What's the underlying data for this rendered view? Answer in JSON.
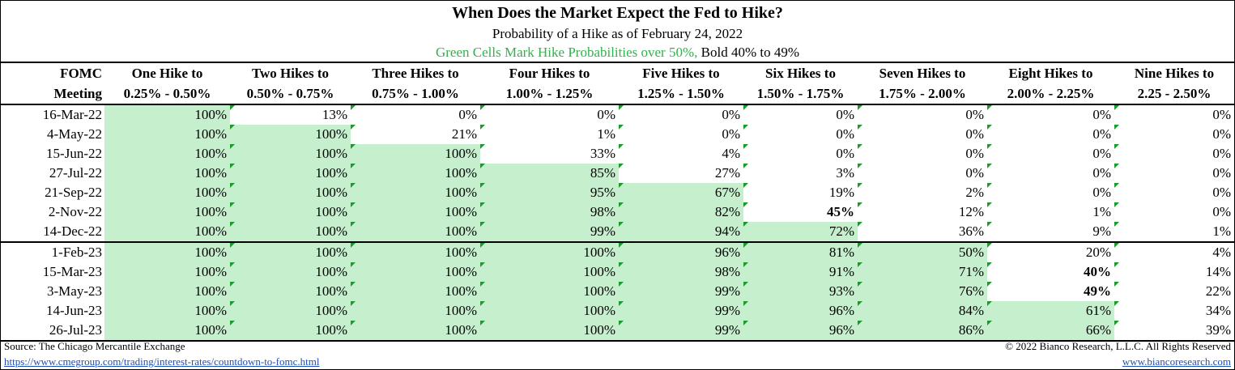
{
  "header": {
    "title": "When Does the Market Expect the Fed to Hike?",
    "subtitle": "Probability of a Hike as of February 24, 2022",
    "note_green": "Green Cells Mark Hike Probabilities over 50%,",
    "note_bold": " Bold 40% to 49%"
  },
  "table": {
    "corner": [
      "FOMC",
      "Meeting"
    ],
    "columns": [
      [
        "One Hike to",
        "0.25% - 0.50%"
      ],
      [
        "Two Hikes to",
        "0.50% - 0.75%"
      ],
      [
        "Three Hikes to",
        "0.75% - 1.00%"
      ],
      [
        "Four Hikes to",
        "1.00% - 1.25%"
      ],
      [
        "Five Hikes to",
        "1.25% - 1.50%"
      ],
      [
        "Six Hikes to",
        "1.50% - 1.75%"
      ],
      [
        "Seven Hikes to",
        "1.75% - 2.00%"
      ],
      [
        "Eight Hikes to",
        "2.00% - 2.25%"
      ],
      [
        "Nine Hikes to",
        "2.25 - 2.50%"
      ]
    ],
    "rows": [
      [
        "16-Mar-22",
        "100%",
        "13%",
        "0%",
        "0%",
        "0%",
        "0%",
        "0%",
        "0%",
        "0%"
      ],
      [
        "4-May-22",
        "100%",
        "100%",
        "21%",
        "1%",
        "0%",
        "0%",
        "0%",
        "0%",
        "0%"
      ],
      [
        "15-Jun-22",
        "100%",
        "100%",
        "100%",
        "33%",
        "4%",
        "0%",
        "0%",
        "0%",
        "0%"
      ],
      [
        "27-Jul-22",
        "100%",
        "100%",
        "100%",
        "85%",
        "27%",
        "3%",
        "0%",
        "0%",
        "0%"
      ],
      [
        "21-Sep-22",
        "100%",
        "100%",
        "100%",
        "95%",
        "67%",
        "19%",
        "2%",
        "0%",
        "0%"
      ],
      [
        "2-Nov-22",
        "100%",
        "100%",
        "100%",
        "98%",
        "82%",
        "45%",
        "12%",
        "1%",
        "0%"
      ],
      [
        "14-Dec-22",
        "100%",
        "100%",
        "100%",
        "99%",
        "94%",
        "72%",
        "36%",
        "9%",
        "1%"
      ],
      [
        "1-Feb-23",
        "100%",
        "100%",
        "100%",
        "100%",
        "96%",
        "81%",
        "50%",
        "20%",
        "4%"
      ],
      [
        "15-Mar-23",
        "100%",
        "100%",
        "100%",
        "100%",
        "98%",
        "91%",
        "71%",
        "40%",
        "14%"
      ],
      [
        "3-May-23",
        "100%",
        "100%",
        "100%",
        "100%",
        "99%",
        "93%",
        "76%",
        "49%",
        "22%"
      ],
      [
        "14-Jun-23",
        "100%",
        "100%",
        "100%",
        "100%",
        "99%",
        "96%",
        "84%",
        "61%",
        "34%"
      ],
      [
        "26-Jul-23",
        "100%",
        "100%",
        "100%",
        "100%",
        "99%",
        "96%",
        "86%",
        "66%",
        "39%"
      ]
    ]
  },
  "footer": {
    "source": "Source: The Chicago Mercantile Exchange",
    "link": "https://www.cmegroup.com/trading/interest-rates/countdown-to-fomc.html",
    "copyright": "© 2022 Bianco Research, L.L.C. All Rights Reserved",
    "website": "www.biancoresearch.com"
  }
}
